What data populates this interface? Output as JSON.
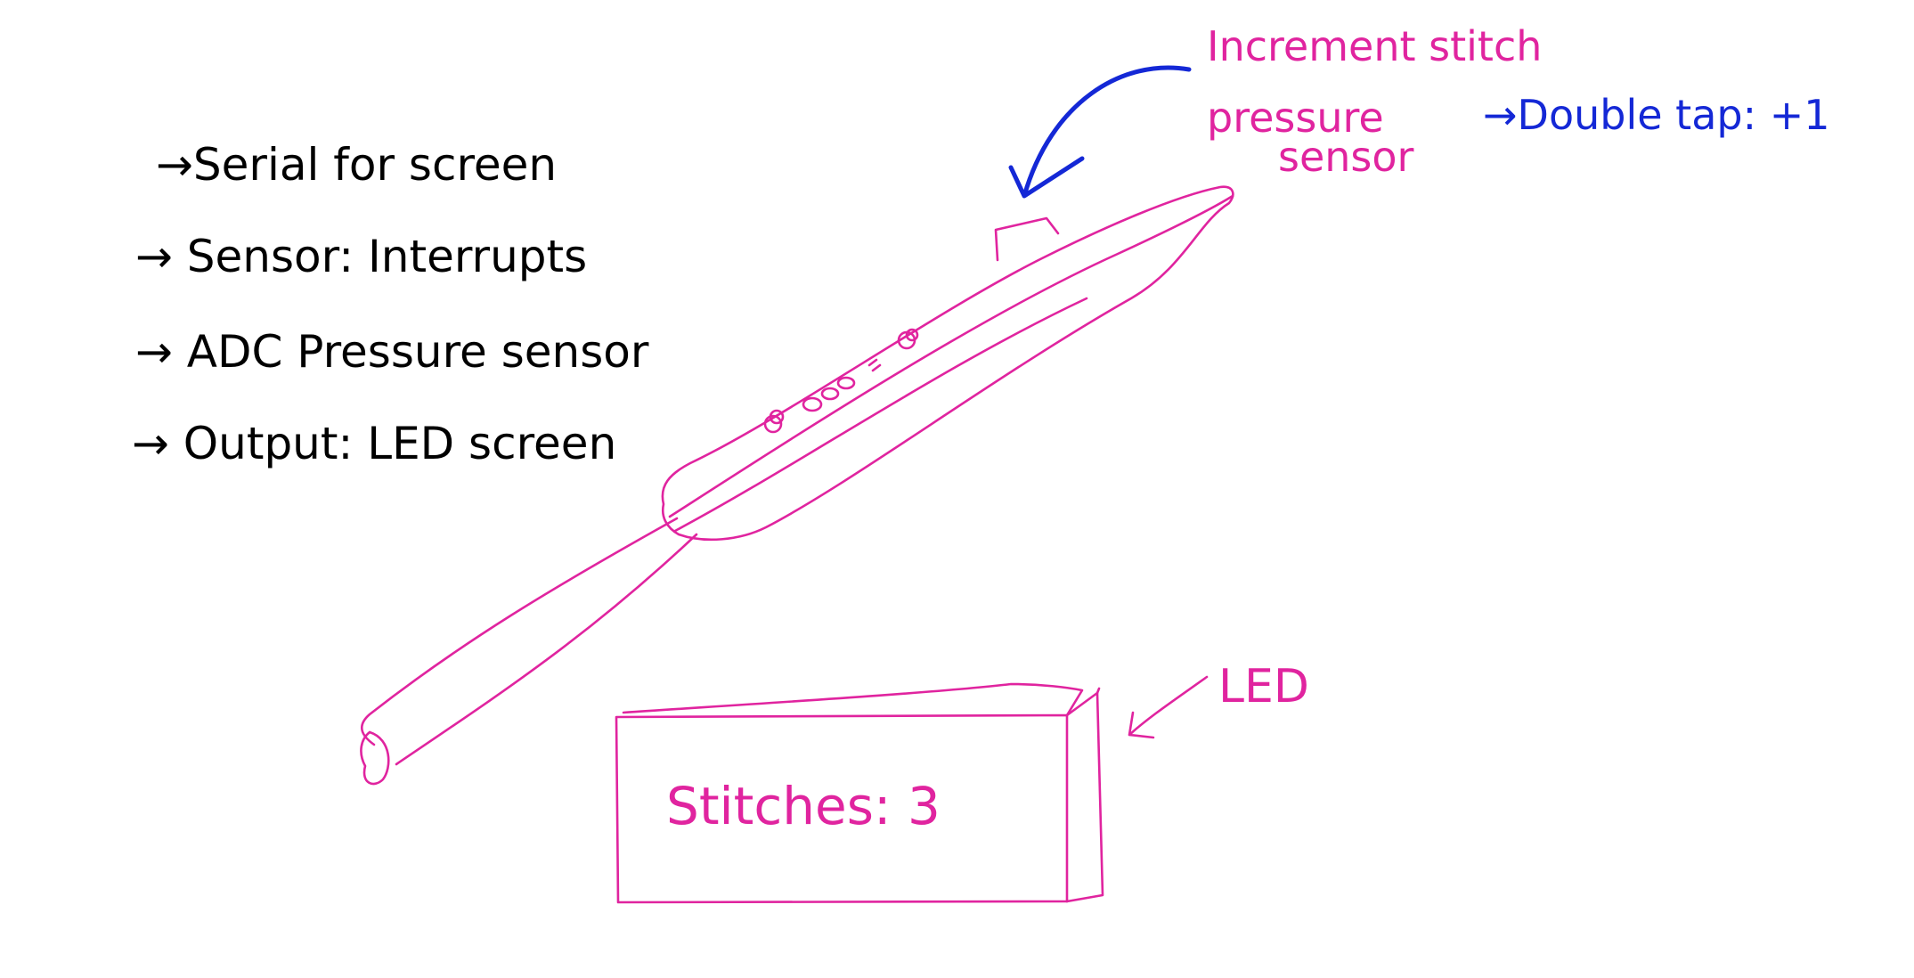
{
  "notes": [
    "→Serial for screen",
    "→ Sensor: Interrupts",
    "→ ADC Pressure sensor",
    "→ Output: LED screen"
  ],
  "labels": {
    "sensor_line1": "Increment stitch",
    "sensor_line2": "pressure",
    "sensor_line3": "sensor",
    "double_tap": "→Double tap: +1",
    "led": "LED",
    "screen_text": "Stitches: 3"
  },
  "colors": {
    "black_ink": "#000000",
    "pink_ink": "#e0249f",
    "blue_ink": "#1428d6"
  }
}
